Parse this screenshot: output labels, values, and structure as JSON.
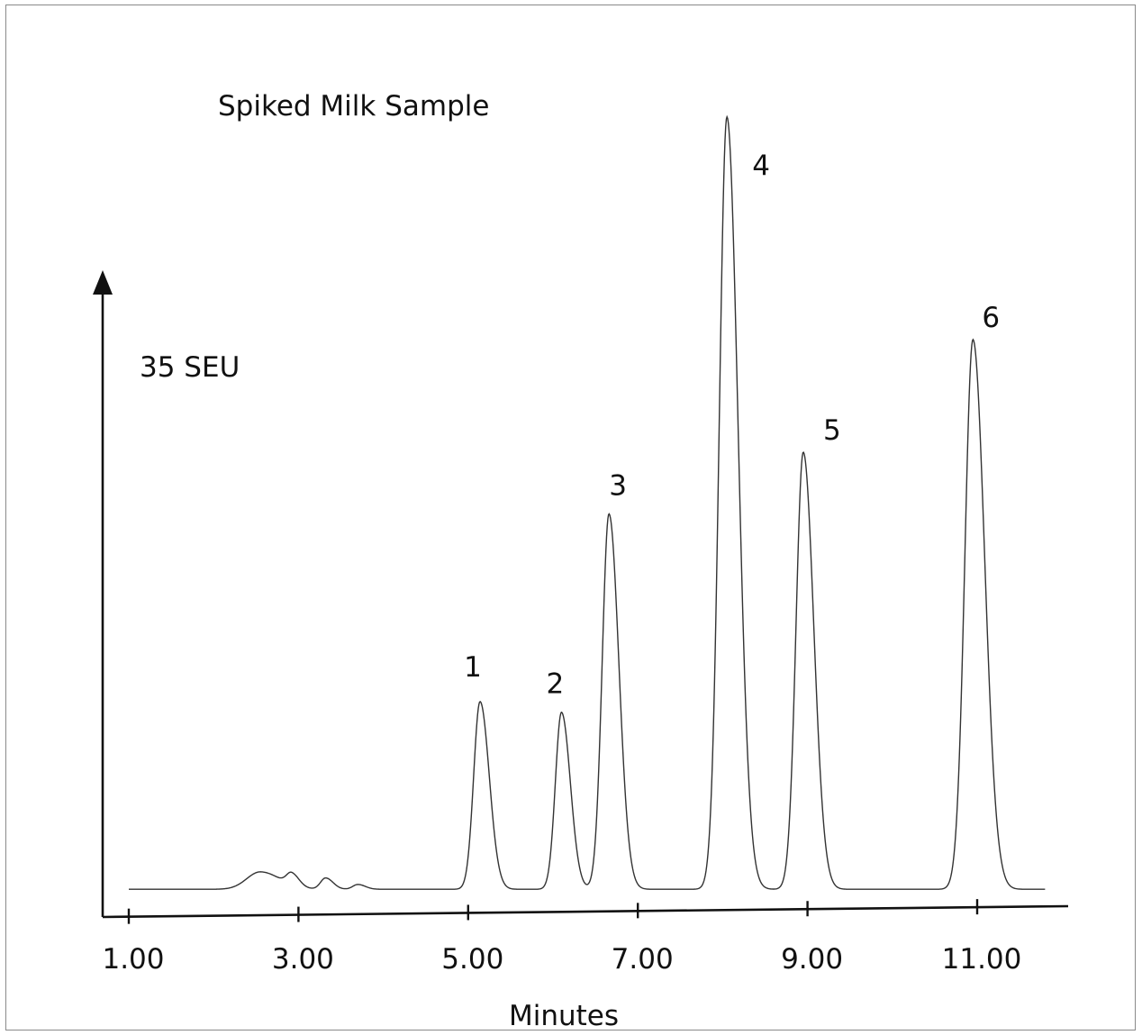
{
  "chart_data": {
    "type": "line",
    "title": "Spiked Milk Sample",
    "scale_label": "35 SEU",
    "xlabel": "Minutes",
    "ylabel": "",
    "xlim": [
      0.7,
      12.3
    ],
    "ylim": [
      0,
      31
    ],
    "x_ticks": [
      {
        "value": 1.0,
        "label": "1.00"
      },
      {
        "value": 3.0,
        "label": "3.00"
      },
      {
        "value": 5.0,
        "label": "5.00"
      },
      {
        "value": 7.0,
        "label": "7.00"
      },
      {
        "value": 9.0,
        "label": "9.00"
      },
      {
        "value": 11.0,
        "label": "11.00"
      }
    ],
    "baseline": 1.0,
    "peaks": [
      {
        "label": "1",
        "rt": 5.14,
        "height": 7.0,
        "width": 0.075
      },
      {
        "label": "2",
        "rt": 6.1,
        "height": 6.6,
        "width": 0.072
      },
      {
        "label": "3",
        "rt": 6.66,
        "height": 14.0,
        "width": 0.08
      },
      {
        "label": "4",
        "rt": 8.05,
        "height": 28.8,
        "width": 0.09
      },
      {
        "label": "5",
        "rt": 8.95,
        "height": 16.3,
        "width": 0.085
      },
      {
        "label": "6",
        "rt": 10.95,
        "height": 20.5,
        "width": 0.095
      }
    ],
    "minor_peaks": [
      {
        "rt": 2.55,
        "height": 0.65,
        "width": 0.16
      },
      {
        "rt": 2.92,
        "height": 0.45,
        "width": 0.06
      },
      {
        "rt": 3.32,
        "height": 0.42,
        "width": 0.06
      },
      {
        "rt": 3.7,
        "height": 0.18,
        "width": 0.06
      }
    ],
    "trace_range": [
      1.0,
      11.8
    ],
    "grid": false,
    "line_color": "#333333",
    "axis_color": "#111111"
  }
}
